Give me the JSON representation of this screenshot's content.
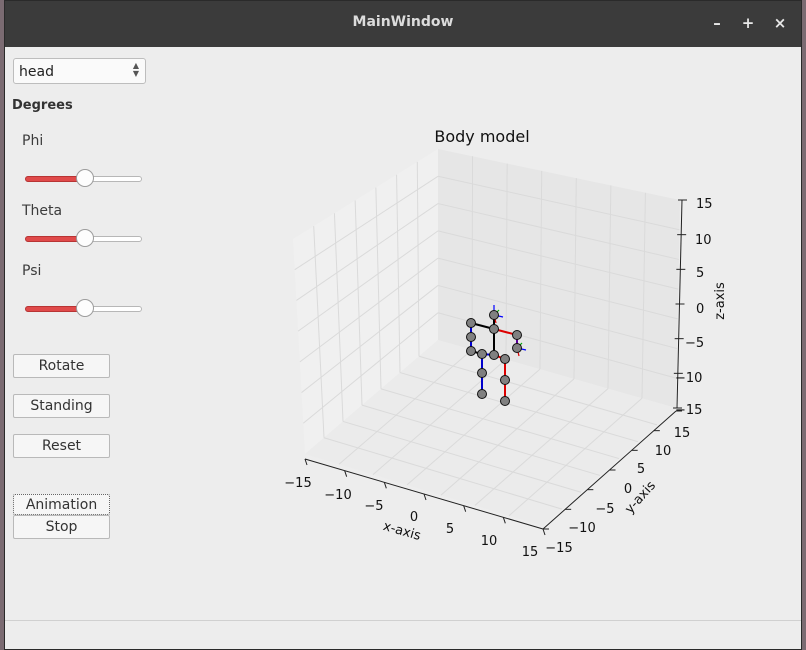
{
  "window": {
    "title": "MainWindow",
    "minimize_label": "–",
    "maximize_label": "+",
    "close_label": "×"
  },
  "controls": {
    "part_select": {
      "value": "head"
    },
    "degrees_label": "Degrees",
    "sliders": [
      {
        "label": "Phi",
        "value_fraction": 0.5
      },
      {
        "label": "Theta",
        "value_fraction": 0.5
      },
      {
        "label": "Psi",
        "value_fraction": 0.5
      }
    ],
    "rotate_label": "Rotate",
    "standing_label": "Standing",
    "reset_label": "Reset",
    "animation_label": "Animation",
    "stop_label": "Stop"
  },
  "plot": {
    "title": "Body model",
    "x_label": "x-axis",
    "y_label": "y-axis",
    "z_label": "z-axis",
    "x_ticks": [
      "−15",
      "−10",
      "−5",
      "0",
      "5",
      "10",
      "15"
    ],
    "y_ticks": [
      "−15",
      "−10",
      "−5",
      "0",
      "5",
      "10",
      "15"
    ],
    "z_ticks": [
      "15",
      "10",
      "5",
      "0",
      "−5",
      "−10",
      "−15"
    ],
    "joint_color": "#808080",
    "colors": {
      "left": "#0000cc",
      "right": "#dd0000",
      "spine": "#000000"
    }
  }
}
